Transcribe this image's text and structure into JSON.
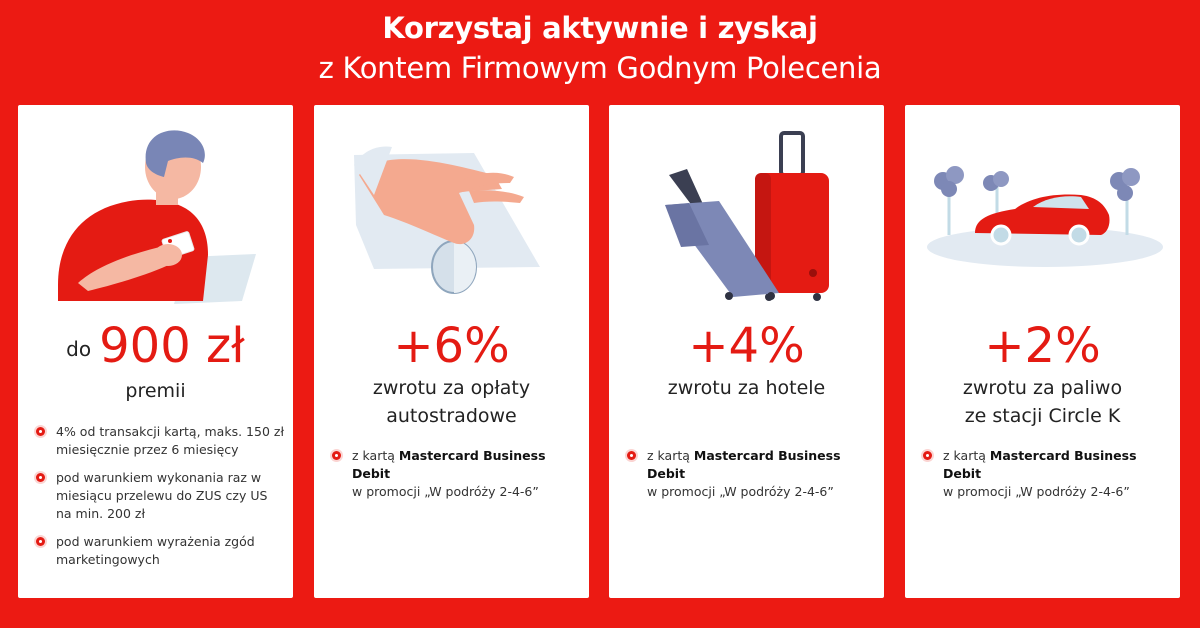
{
  "header": {
    "line1": "Korzystaj aktywnie i zyskaj",
    "line2": "z Kontem Firmowym Godnym Polecenia"
  },
  "colors": {
    "brand_red": "#ec1a13",
    "card": "#ffffff",
    "accent_red": "#e41b13"
  },
  "cards": [
    {
      "illustration": "man-with-card-and-laptop",
      "prefix": "do",
      "big": "900 zł",
      "sub_lines": [
        "premii"
      ],
      "bullets": [
        "4% od transakcji kartą, maks. 150 zł miesięcznie przez 6 miesięcy",
        "pod warunkiem wykonania raz w miesiącu przelewu do ZUS czy US na min. 200 zł",
        "pod warunkiem wyrażenia zgód marketingowych"
      ]
    },
    {
      "illustration": "hand-with-coin",
      "big": "+6%",
      "sub_lines": [
        "zwrotu za opłaty",
        "autostradowe"
      ],
      "bullet_prefix": "z kartą ",
      "bullet_bold": "Mastercard Business Debit",
      "bullet_suffix": "w promocji „W podróży 2-4-6”"
    },
    {
      "illustration": "suitcases",
      "big": "+4%",
      "sub_lines": [
        "zwrotu za hotele"
      ],
      "bullet_prefix": "z kartą ",
      "bullet_bold": "Mastercard Business Debit",
      "bullet_suffix": "w promocji „W podróży 2-4-6”"
    },
    {
      "illustration": "red-car-with-trees",
      "big": "+2%",
      "sub_lines": [
        "zwrotu za paliwo",
        "ze stacji Circle K"
      ],
      "bullet_prefix": "z kartą ",
      "bullet_bold": "Mastercard Business Debit",
      "bullet_suffix": "w promocji „W podróży 2-4-6”"
    }
  ]
}
